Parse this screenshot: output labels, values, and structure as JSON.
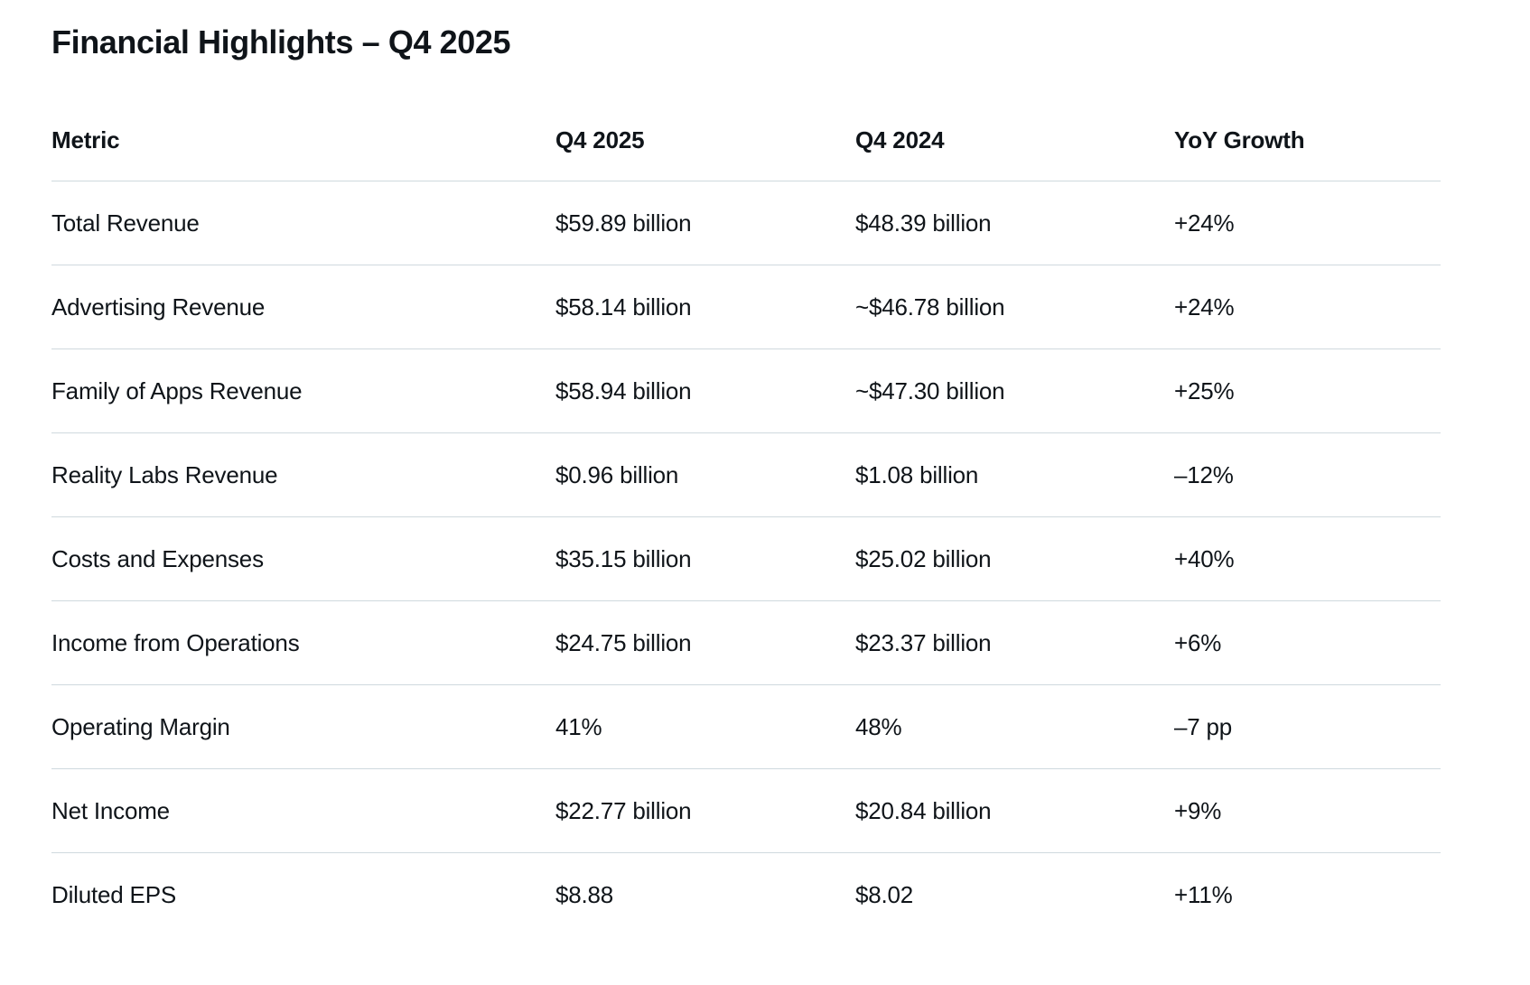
{
  "title": "Financial Highlights – Q4 2025",
  "colors": {
    "text": "#0f1419",
    "divider": "#cfd9de",
    "background": "#ffffff"
  },
  "table": {
    "columns": [
      "Metric",
      "Q4 2025",
      "Q4 2024",
      "YoY Growth"
    ],
    "rows": [
      {
        "metric": "Total Revenue",
        "q4_2025": "$59.89 billion",
        "q4_2024": "$48.39 billion",
        "yoy": "+24%"
      },
      {
        "metric": "Advertising Revenue",
        "q4_2025": "$58.14 billion",
        "q4_2024": "~$46.78 billion",
        "yoy": "+24%"
      },
      {
        "metric": "Family of Apps Revenue",
        "q4_2025": "$58.94 billion",
        "q4_2024": "~$47.30 billion",
        "yoy": "+25%"
      },
      {
        "metric": "Reality Labs Revenue",
        "q4_2025": "$0.96 billion",
        "q4_2024": "$1.08 billion",
        "yoy": "–12%"
      },
      {
        "metric": "Costs and Expenses",
        "q4_2025": "$35.15 billion",
        "q4_2024": "$25.02 billion",
        "yoy": "+40%"
      },
      {
        "metric": "Income from Operations",
        "q4_2025": "$24.75 billion",
        "q4_2024": "$23.37 billion",
        "yoy": "+6%"
      },
      {
        "metric": "Operating Margin",
        "q4_2025": "41%",
        "q4_2024": "48%",
        "yoy": "–7 pp"
      },
      {
        "metric": "Net Income",
        "q4_2025": "$22.77 billion",
        "q4_2024": "$20.84 billion",
        "yoy": "+9%"
      },
      {
        "metric": "Diluted EPS",
        "q4_2025": "$8.88",
        "q4_2024": "$8.02",
        "yoy": "+11%"
      }
    ]
  }
}
